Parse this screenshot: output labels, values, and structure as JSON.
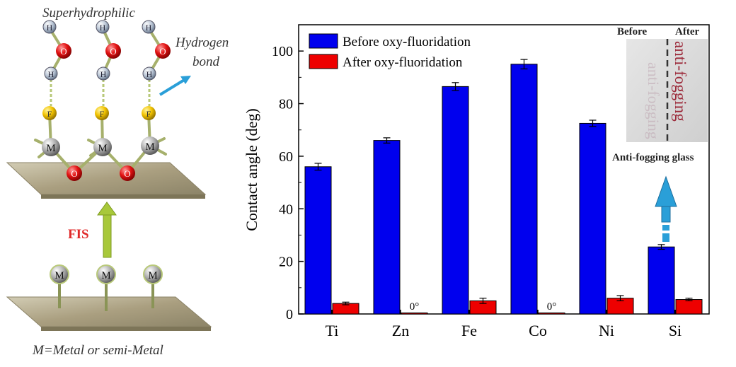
{
  "schematic": {
    "top_label": "Superhydrophilic",
    "hbond_label_line1": "Hydrogen",
    "hbond_label_line2": "bond",
    "process_label": "FIS",
    "footer_label": "M=Metal or semi-Metal",
    "atoms": {
      "hydrogen": "H",
      "oxygen": "O",
      "fluorine": "F",
      "metal": "M"
    }
  },
  "photo": {
    "before_label": "Before",
    "after_label": "After",
    "glass_text": "anti-fogging",
    "caption": "Anti-fogging glass"
  },
  "colors": {
    "before": "#0000ee",
    "after": "#ee0000",
    "arrow_green": "#a8c83a",
    "arrow_blue": "#2a9fd8",
    "plate": "#b4ab8e"
  },
  "chart_data": {
    "type": "bar",
    "categories": [
      "Ti",
      "Zn",
      "Fe",
      "Co",
      "Ni",
      "Si"
    ],
    "series": [
      {
        "name": "Before oxy-fluoridation",
        "values": [
          56,
          66,
          86.5,
          95,
          72.5,
          25.5
        ],
        "errors": [
          1.3,
          1.0,
          1.5,
          1.8,
          1.2,
          0.9
        ]
      },
      {
        "name": "After oxy-fluoridation",
        "values": [
          4,
          0.4,
          5,
          0.4,
          6,
          5.5
        ],
        "errors": [
          0.5,
          0,
          1.0,
          0,
          1.0,
          0.5
        ]
      }
    ],
    "annotations": [
      {
        "category": "Zn",
        "text": "0°"
      },
      {
        "category": "Co",
        "text": "0°"
      }
    ],
    "ylabel": "Contact angle (deg)",
    "xlabel": "",
    "ylim": [
      0,
      110
    ],
    "yticks": [
      0,
      20,
      40,
      60,
      80,
      100
    ],
    "legend_position": "top-left"
  }
}
